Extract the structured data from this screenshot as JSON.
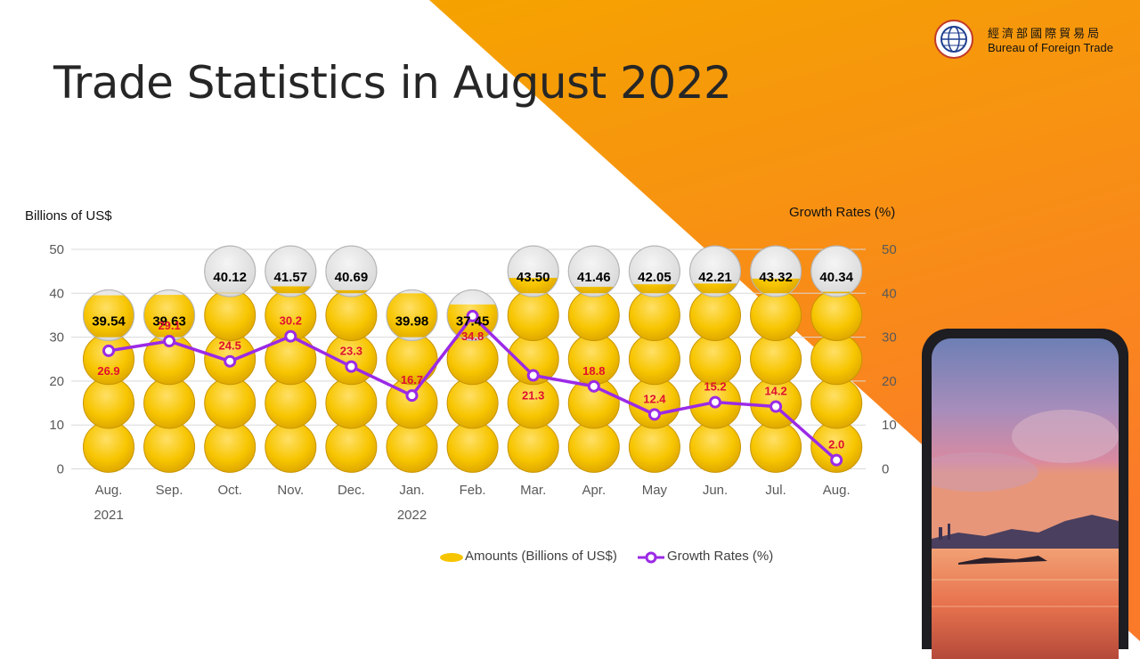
{
  "page": {
    "title": "Trade Statistics in August 2022"
  },
  "logo": {
    "name_cn": "經濟部國際貿易局",
    "name_en": "Bureau of Foreign Trade"
  },
  "colors": {
    "orange_gradient_start": "#f5a300",
    "orange_gradient_end": "#fb7a2a",
    "bubble_yellow": "#f7c500",
    "bubble_empty": "#e3e3e3",
    "growth_line": "#9b2ae6",
    "growth_label": "#e0102f",
    "gridline": "#d9d9d9"
  },
  "chart_data": {
    "type": "line",
    "title": "",
    "left_axis_title": "Billions of US$",
    "right_axis_title": "Growth Rates (%)",
    "categories": [
      "Aug.",
      "Sep.",
      "Oct.",
      "Nov.",
      "Dec.",
      "Jan.",
      "Feb.",
      "Mar.",
      "Apr.",
      "May",
      "Jun.",
      "Jul.",
      "Aug."
    ],
    "year_labels": [
      {
        "category_index": 0,
        "label": "2021"
      },
      {
        "category_index": 5,
        "label": "2022"
      }
    ],
    "ylim": [
      0,
      50
    ],
    "yticks": [
      0,
      10,
      20,
      30,
      40,
      50
    ],
    "y2lim": [
      0,
      50
    ],
    "y2ticks": [
      0,
      10,
      20,
      30,
      40,
      50
    ],
    "grid": true,
    "legend_position": "bottom",
    "series": [
      {
        "name": "Amounts (Billions of US$)",
        "kind": "stacked-bubble-pictogram",
        "axis": "left",
        "values": [
          "39.54",
          "39.63",
          "40.12",
          "41.57",
          "40.69",
          "39.98",
          "37.45",
          "43.50",
          "41.46",
          "42.05",
          "42.21",
          "43.32",
          "40.34"
        ]
      },
      {
        "name": "Growth Rates (%)",
        "kind": "line",
        "axis": "right",
        "values": [
          "26.9",
          "29.1",
          "24.5",
          "30.2",
          "23.3",
          "16.7",
          "34.8",
          "21.3",
          "18.8",
          "12.4",
          "15.2",
          "14.2",
          "2.0"
        ]
      }
    ]
  }
}
